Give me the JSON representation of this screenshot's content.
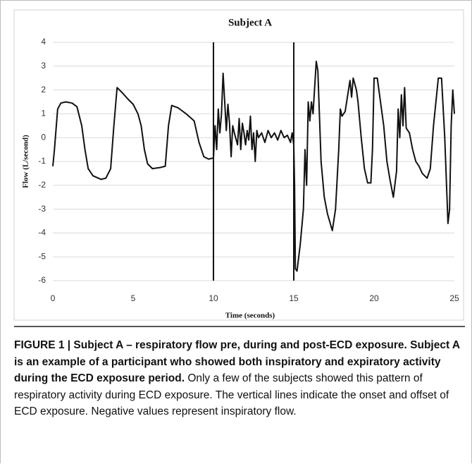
{
  "chart_data": {
    "type": "line",
    "title": "Subject A",
    "xlabel": "Time (seconds)",
    "ylabel": "Flow (L/second)",
    "xlim": [
      0,
      25
    ],
    "xticks": [
      0,
      5,
      10,
      15,
      20,
      25
    ],
    "ylim": [
      -6,
      4
    ],
    "yticks": [
      -6,
      -5,
      -4,
      -3,
      -2,
      -1,
      0,
      1,
      2,
      3,
      4
    ],
    "grid": true,
    "vlines": [
      10,
      15
    ],
    "x": [
      0,
      0.1,
      0.3,
      0.5,
      0.8,
      1.2,
      1.5,
      1.8,
      2.0,
      2.2,
      2.5,
      3.0,
      3.3,
      3.6,
      3.8,
      4.0,
      4.3,
      4.7,
      5.0,
      5.3,
      5.5,
      5.7,
      5.9,
      6.2,
      6.7,
      7.0,
      7.2,
      7.4,
      7.8,
      8.3,
      8.8,
      9.1,
      9.4,
      9.7,
      10.0,
      10.1,
      10.2,
      10.3,
      10.4,
      10.5,
      10.6,
      10.7,
      10.8,
      10.9,
      11.0,
      11.1,
      11.2,
      11.3,
      11.5,
      11.6,
      11.7,
      11.8,
      11.9,
      12.0,
      12.1,
      12.2,
      12.3,
      12.4,
      12.5,
      12.6,
      12.7,
      12.8,
      13.0,
      13.2,
      13.4,
      13.6,
      13.8,
      14.0,
      14.2,
      14.4,
      14.6,
      14.8,
      14.9,
      15.0,
      15.05,
      15.1,
      15.2,
      15.4,
      15.6,
      15.7,
      15.8,
      15.9,
      16.0,
      16.1,
      16.2,
      16.4,
      16.5,
      16.7,
      16.9,
      17.1,
      17.4,
      17.6,
      17.8,
      17.9,
      18.0,
      18.2,
      18.5,
      18.6,
      18.7,
      18.9,
      19.0,
      19.2,
      19.4,
      19.6,
      19.8,
      19.9,
      20.0,
      20.2,
      20.4,
      20.6,
      20.8,
      21.0,
      21.2,
      21.4,
      21.5,
      21.6,
      21.7,
      21.8,
      21.9,
      22.0,
      22.2,
      22.4,
      22.6,
      22.8,
      23.0,
      23.3,
      23.5,
      23.7,
      24.0,
      24.2,
      24.4,
      24.6,
      24.7,
      24.8,
      24.9,
      25.0
    ],
    "series": [
      {
        "color": "#111111",
        "values": [
          -1.2,
          -0.5,
          1.2,
          1.45,
          1.5,
          1.45,
          1.3,
          0.5,
          -0.5,
          -1.3,
          -1.6,
          -1.75,
          -1.7,
          -1.3,
          0.5,
          2.1,
          1.9,
          1.6,
          1.4,
          1.0,
          0.5,
          -0.5,
          -1.1,
          -1.3,
          -1.25,
          -1.2,
          0.5,
          1.35,
          1.25,
          1.0,
          0.7,
          -0.2,
          -0.8,
          -0.9,
          -0.85,
          0.5,
          -0.5,
          1.2,
          0.2,
          1.0,
          2.7,
          1.5,
          0.3,
          1.4,
          0.6,
          -0.8,
          0.5,
          0.2,
          -0.3,
          0.8,
          -0.5,
          0.6,
          0.2,
          -0.3,
          0.3,
          -0.1,
          0.9,
          -0.5,
          0.2,
          -1.0,
          0.3,
          0.0,
          0.2,
          -0.2,
          0.3,
          0.0,
          0.2,
          -0.1,
          0.3,
          0.0,
          0.1,
          -0.2,
          0.2,
          -0.3,
          -2.0,
          -5.5,
          -5.6,
          -4.5,
          -3.0,
          -0.5,
          -2.0,
          1.5,
          0.7,
          1.5,
          1.0,
          3.2,
          2.8,
          -1.0,
          -2.5,
          -3.2,
          -3.9,
          -3.0,
          -0.5,
          1.2,
          0.9,
          1.1,
          2.4,
          1.7,
          2.5,
          2.0,
          1.5,
          0.0,
          -1.3,
          -1.9,
          -1.9,
          -0.5,
          2.5,
          2.5,
          1.5,
          0.5,
          -1.0,
          -1.8,
          -2.5,
          -1.4,
          1.2,
          0.0,
          1.8,
          0.5,
          2.1,
          0.4,
          0.2,
          -0.5,
          -1.0,
          -1.2,
          -1.5,
          -1.7,
          -1.3,
          0.5,
          2.5,
          2.5,
          0.0,
          -3.6,
          -3.0,
          0.5,
          2.0,
          1.0
        ]
      }
    ]
  },
  "caption": {
    "heading": "FIGURE 1 | Subject A – respiratory flow pre, during and post-ECD exposure. Subject A is an example of a participant who showed both inspiratory and expiratory activity during the ECD exposure period.",
    "body": "Only a few of the subjects showed this pattern of respiratory activity during ECD exposure. The vertical lines indicate the onset and offset of ECD exposure. Negative values represent inspiratory flow."
  }
}
